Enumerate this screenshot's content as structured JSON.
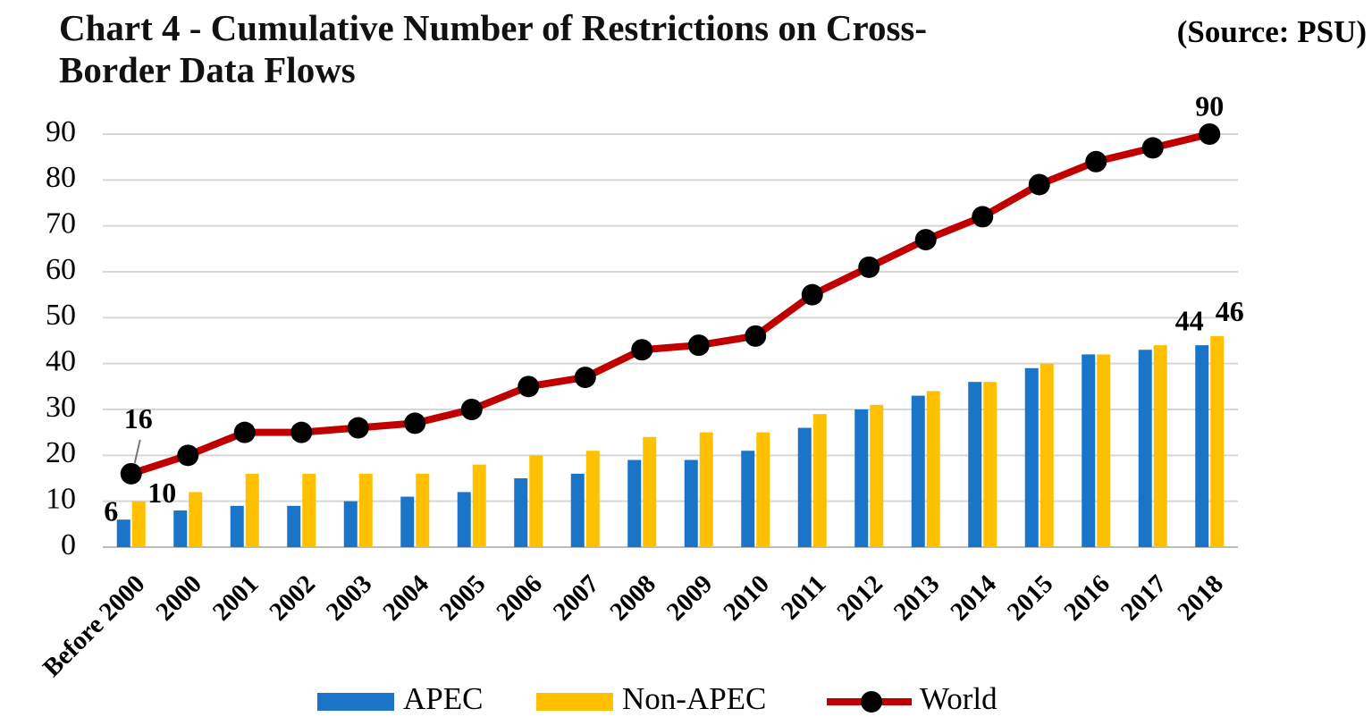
{
  "chart_data": {
    "type": "bar",
    "title": "Chart 4 - Cumulative Number of Restrictions on Cross-Border Data Flows",
    "source": "(Source: PSU)",
    "categories": [
      "Before 2000",
      "2000",
      "2001",
      "2002",
      "2003",
      "2004",
      "2005",
      "2006",
      "2007",
      "2008",
      "2009",
      "2010",
      "2011",
      "2012",
      "2013",
      "2014",
      "2015",
      "2016",
      "2017",
      "2018"
    ],
    "series": [
      {
        "name": "APEC",
        "type": "bar",
        "color": "#1a75c9",
        "values": [
          6,
          8,
          9,
          9,
          10,
          11,
          12,
          15,
          16,
          19,
          19,
          21,
          26,
          30,
          33,
          36,
          39,
          42,
          43,
          44
        ],
        "value_labels": [
          "6",
          null,
          null,
          null,
          null,
          null,
          null,
          null,
          null,
          null,
          null,
          null,
          null,
          null,
          null,
          null,
          null,
          null,
          null,
          "44"
        ]
      },
      {
        "name": "Non-APEC",
        "type": "bar",
        "color": "#ffc000",
        "values": [
          10,
          12,
          16,
          16,
          16,
          16,
          18,
          20,
          21,
          24,
          25,
          25,
          29,
          31,
          34,
          36,
          40,
          42,
          44,
          46
        ],
        "value_labels": [
          "10",
          null,
          null,
          null,
          null,
          null,
          null,
          null,
          null,
          null,
          null,
          null,
          null,
          null,
          null,
          null,
          null,
          null,
          null,
          "46"
        ]
      },
      {
        "name": "World",
        "type": "line",
        "color": "#c00000",
        "marker_color": "#000000",
        "values": [
          16,
          20,
          25,
          25,
          26,
          27,
          30,
          35,
          37,
          43,
          44,
          46,
          55,
          61,
          67,
          72,
          79,
          84,
          87,
          90
        ],
        "value_labels": [
          "16",
          null,
          null,
          null,
          null,
          null,
          null,
          null,
          null,
          null,
          null,
          null,
          null,
          null,
          null,
          null,
          null,
          null,
          null,
          "90"
        ]
      }
    ],
    "ylim": [
      0,
      90
    ],
    "yticks": [
      0,
      10,
      20,
      30,
      40,
      50,
      60,
      70,
      80,
      90
    ],
    "grid": true,
    "legend": "bottom"
  }
}
